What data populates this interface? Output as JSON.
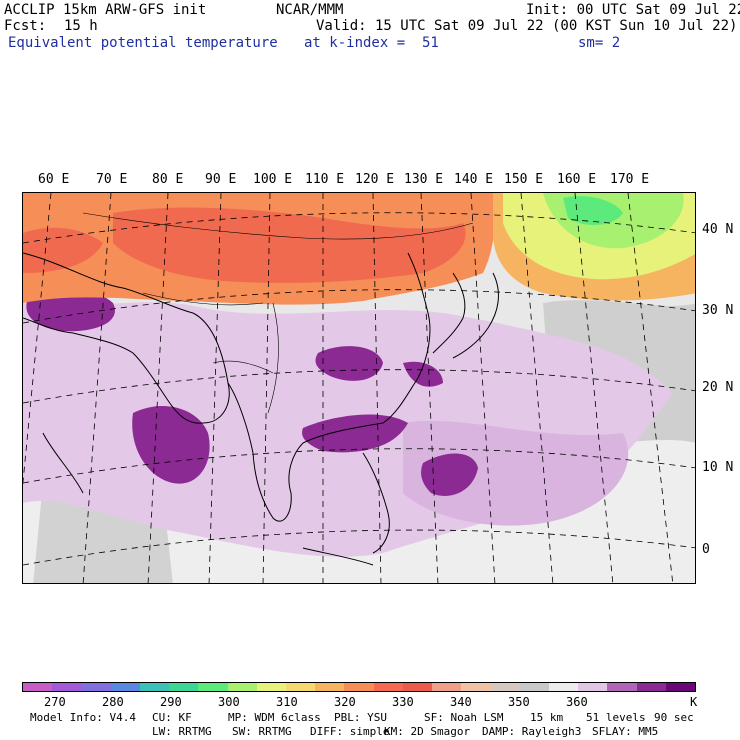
{
  "header": {
    "model": "ACCLIP 15km ARW-GFS init",
    "center": "NCAR/MMM",
    "init": "Init: 00 UTC Sat 09 Jul 22",
    "fcst_label": "Fcst:",
    "fcst_value": "15 h",
    "valid": "Valid: 15 UTC Sat 09 Jul 22 (00 KST Sun 10 Jul 22)",
    "field": "Equivalent potential temperature",
    "level": "at k-index =  51",
    "smooth": "sm= 2"
  },
  "map": {
    "lon_labels": [
      "60 E",
      "70 E",
      "80 E",
      "90 E",
      "100 E",
      "110 E",
      "120 E",
      "130 E",
      "140 E",
      "150 E",
      "160 E",
      "170 E"
    ],
    "lat_labels": [
      "40 N",
      "30 N",
      "20 N",
      "10 N",
      "0"
    ]
  },
  "colorbar": {
    "colors": [
      "#c65cc6",
      "#a35ad6",
      "#8070e0",
      "#5a88e0",
      "#3cc0b8",
      "#3ed694",
      "#5cea7c",
      "#a8f070",
      "#e6f27a",
      "#f4d870",
      "#f6b460",
      "#f68e58",
      "#f56a50",
      "#ec5a4e",
      "#f0a088",
      "#f2c2a6",
      "#d6c8c0",
      "#c8c8c8",
      "#ececec",
      "#e2c6e6",
      "#b066b8",
      "#8c2a94",
      "#6a0878"
    ],
    "tick_labels": [
      "270",
      "280",
      "290",
      "300",
      "310",
      "320",
      "330",
      "340",
      "350",
      "360"
    ],
    "unit": "K"
  },
  "footer": {
    "line1": [
      "Model Info: V4.4",
      "CU: KF",
      "MP: WDM 6class",
      "PBL: YSU",
      "SF: Noah LSM",
      "15 km",
      "51 levels",
      "90 sec"
    ],
    "line2": [
      "LW: RRTMG",
      "SW: RRTMG",
      "DIFF: simple",
      "KM: 2D Smagor",
      "DAMP: Rayleigh3",
      "SFLAY: MM5"
    ]
  }
}
